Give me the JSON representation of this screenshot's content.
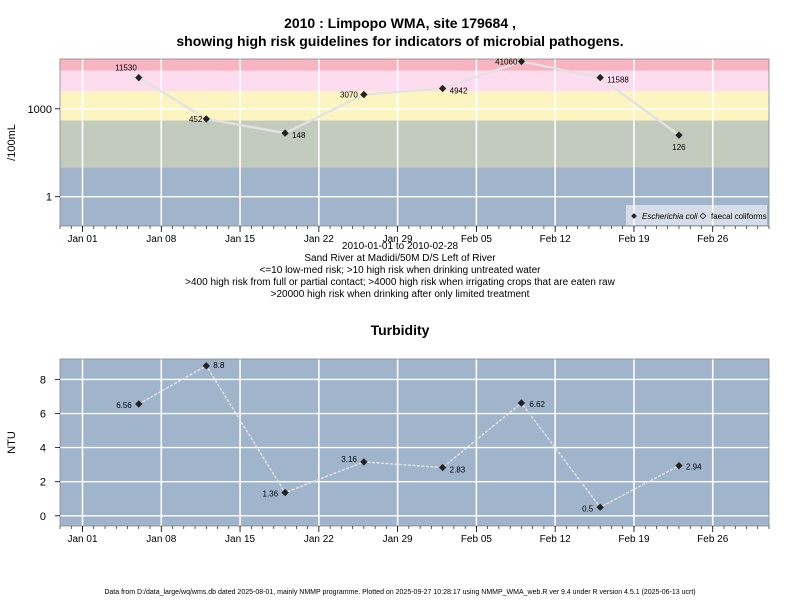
{
  "header": {
    "title_line1": "2010 : Limpopo WMA, site 179684 ,",
    "title_line2": "showing high risk guidelines for indicators of microbial pathogens."
  },
  "notes": {
    "line1": "2010-01-01 to 2010-02-28",
    "line2": "Sand River at Madidi/50M D/S Left of River",
    "line3": "<=10 low-med risk; >10 high risk when drinking untreated water",
    "line4": ">400 high risk from full or partial contact; >4000 high risk when irrigating crops that are eaten raw",
    "line5": ">20000 high risk when drinking after only limited treatment"
  },
  "footer": {
    "text": "Data from D:/data_large/wq/wms.db dated 2025-08-01, mainly NMMP programme. Plotted on 2025-09-27 10:28:17 using NMMP_WMA_web.R ver 9.4 under R version 4.5.1 (2025-06-13 ucrt)"
  },
  "chart_data": [
    {
      "type": "line",
      "title": "",
      "ylabel": "/100mL",
      "yscale": "log",
      "ylim": [
        0.1,
        50000
      ],
      "x_ticks": [
        "Jan 01",
        "Jan 08",
        "Jan 15",
        "Jan 22",
        "Jan 29",
        "Feb 05",
        "Feb 12",
        "Feb 19",
        "Feb 26"
      ],
      "y_ticks": [
        1,
        1000
      ],
      "y_tick_labels": [
        "1",
        "1000"
      ],
      "risk_bands": [
        {
          "from": 0.1,
          "to": 10,
          "color": "#a0b4cc"
        },
        {
          "from": 10,
          "to": 400,
          "color": "#c2cbbd"
        },
        {
          "from": 400,
          "to": 4000,
          "color": "#fdf5c1"
        },
        {
          "from": 4000,
          "to": 20000,
          "color": "#fddcef"
        },
        {
          "from": 20000,
          "to": 50000,
          "color": "#f8b4c0"
        }
      ],
      "legend": {
        "position": "bottom-right",
        "entries": [
          "Escherichia coli",
          "faecal coliforms"
        ]
      },
      "series": [
        {
          "name": "Escherichia coli",
          "x": [
            "2010-01-06",
            "2010-01-12",
            "2010-01-19",
            "2010-01-26",
            "2010-02-02",
            "2010-02-09",
            "2010-02-16",
            "2010-02-23"
          ],
          "values": [
            11530,
            452,
            148,
            3070,
            4942,
            41060,
            11588,
            126
          ],
          "labels": [
            "11530",
            "452",
            "148",
            "3070",
            "4942",
            "41060",
            "11588",
            "126"
          ]
        }
      ]
    },
    {
      "type": "line",
      "title": "Turbidity",
      "ylabel": "NTU",
      "ylim": [
        -0.6,
        9.2
      ],
      "x_ticks": [
        "Jan 01",
        "Jan 08",
        "Jan 15",
        "Jan 22",
        "Jan 29",
        "Feb 05",
        "Feb 12",
        "Feb 19",
        "Feb 26"
      ],
      "y_ticks": [
        0,
        2,
        4,
        6,
        8
      ],
      "series": [
        {
          "x": [
            "2010-01-06",
            "2010-01-12",
            "2010-01-19",
            "2010-01-26",
            "2010-02-02",
            "2010-02-09",
            "2010-02-16",
            "2010-02-23"
          ],
          "values": [
            6.56,
            8.8,
            1.36,
            3.16,
            2.83,
            6.62,
            0.5,
            2.94
          ],
          "labels": [
            "6.56",
            "8.8",
            "1.36",
            "3.16",
            "2.83",
            "6.62",
            "0.5",
            "2.94"
          ]
        }
      ]
    }
  ]
}
